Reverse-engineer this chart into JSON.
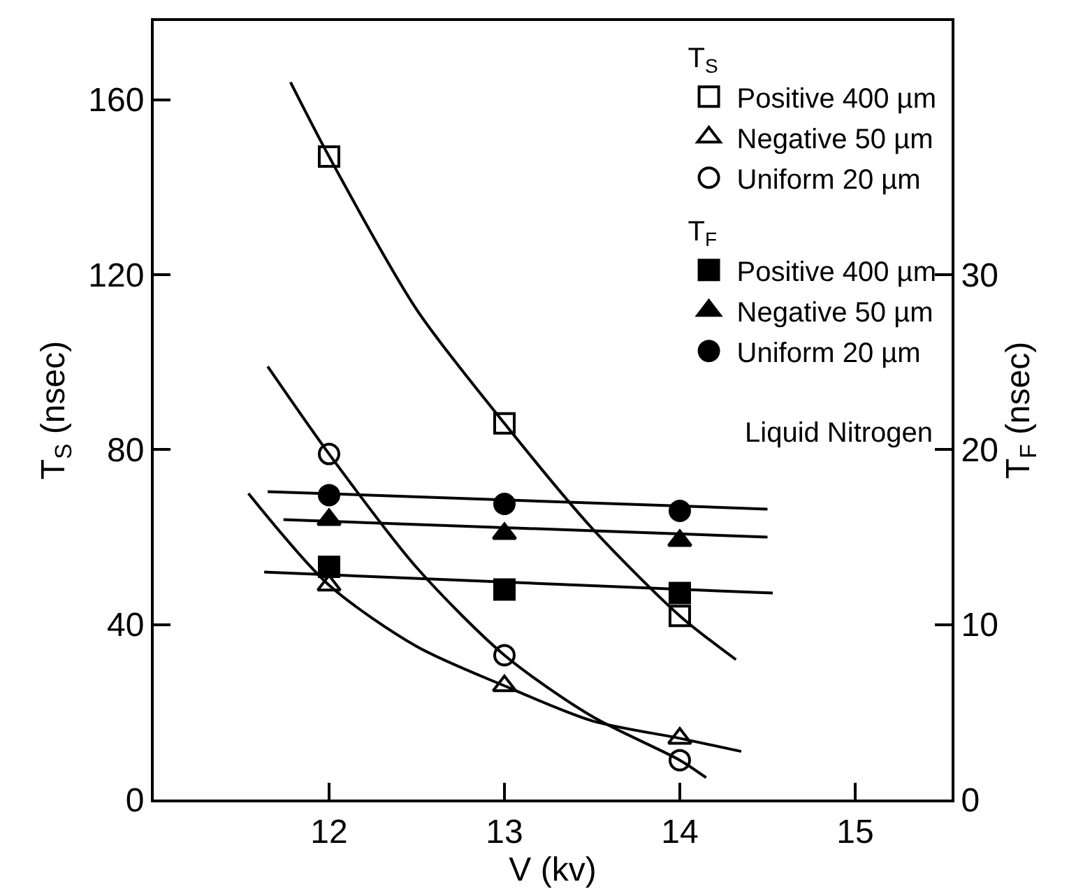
{
  "chart_data": {
    "type": "scatter",
    "xlabel": "V (kv)",
    "ylabel": "T$_{S}$ (nsec)",
    "y2label": "T$_{F}$ (nsec)",
    "annotations": [
      "T$_{S}$",
      "T$_{F}$",
      "Liquid Nitrogen"
    ],
    "xlim": [
      11,
      15.55
    ],
    "xticks": [
      12,
      13,
      14,
      15
    ],
    "ylim": [
      0,
      178
    ],
    "yticks": [
      0,
      40,
      80,
      120,
      160
    ],
    "y2lim": [
      0,
      44.5
    ],
    "y2ticks": [
      0,
      10,
      20,
      30
    ],
    "grid": false,
    "legend": "top right",
    "series": [
      {
        "name": "Positive 400 µm",
        "color": "#000000",
        "marker": "square",
        "x": [
          12,
          13,
          14
        ],
        "values": [
          147,
          86,
          42
        ]
      },
      {
        "name": "Negative 50 µm",
        "color": "#000000",
        "marker": "triangle",
        "x": [
          12,
          13,
          14
        ],
        "values": [
          49,
          26,
          14
        ]
      },
      {
        "name": "Uniform 20 µm",
        "color": "#000000",
        "marker": "circle",
        "x": [
          12,
          13,
          14
        ],
        "values": [
          79,
          33,
          9
        ]
      },
      {
        "name": "Positive 400 µm",
        "color": "#000000",
        "marker": "square",
        "axis": "y2",
        "x": [
          12,
          13,
          14
        ],
        "values": [
          13.3,
          12.0,
          11.8
        ]
      },
      {
        "name": "Negative 50 µm",
        "color": "#000000",
        "marker": "triangle",
        "axis": "y2",
        "x": [
          12,
          13,
          14
        ],
        "values": [
          16.0,
          15.2,
          14.8
        ]
      },
      {
        "name": "Uniform 20 µm",
        "color": "#000000",
        "marker": "circle",
        "axis": "y2",
        "x": [
          12,
          13,
          14
        ],
        "values": [
          17.4,
          16.9,
          16.5
        ]
      },
      {
        "type": "line",
        "color": "#000000",
        "marker": "none",
        "x": [
          11.78,
          12,
          12.5,
          13,
          13.5,
          14,
          14.32
        ],
        "values": [
          164,
          147,
          112,
          86,
          62,
          42,
          32
        ]
      },
      {
        "type": "line",
        "color": "#000000",
        "marker": "none",
        "x": [
          11.65,
          12,
          12.5,
          13,
          13.5,
          14,
          14.15
        ],
        "values": [
          99,
          79,
          53,
          33,
          19,
          9,
          5
        ]
      },
      {
        "type": "line",
        "color": "#000000",
        "marker": "none",
        "x": [
          11.54,
          12,
          12.5,
          13,
          13.5,
          14,
          14.35
        ],
        "values": [
          70,
          49,
          35,
          26,
          18,
          14,
          11
        ]
      },
      {
        "type": "line",
        "color": "#000000",
        "marker": "none",
        "axis": "y2",
        "x": [
          11.63,
          14.53
        ],
        "values": [
          13.0,
          11.8
        ]
      },
      {
        "type": "line",
        "color": "#000000",
        "marker": "none",
        "axis": "y2",
        "x": [
          11.74,
          14.5
        ],
        "values": [
          16.0,
          15.0
        ]
      },
      {
        "type": "line",
        "color": "#000000",
        "marker": "none",
        "axis": "y2",
        "x": [
          11.65,
          14.5
        ],
        "values": [
          17.6,
          16.6
        ]
      }
    ]
  }
}
